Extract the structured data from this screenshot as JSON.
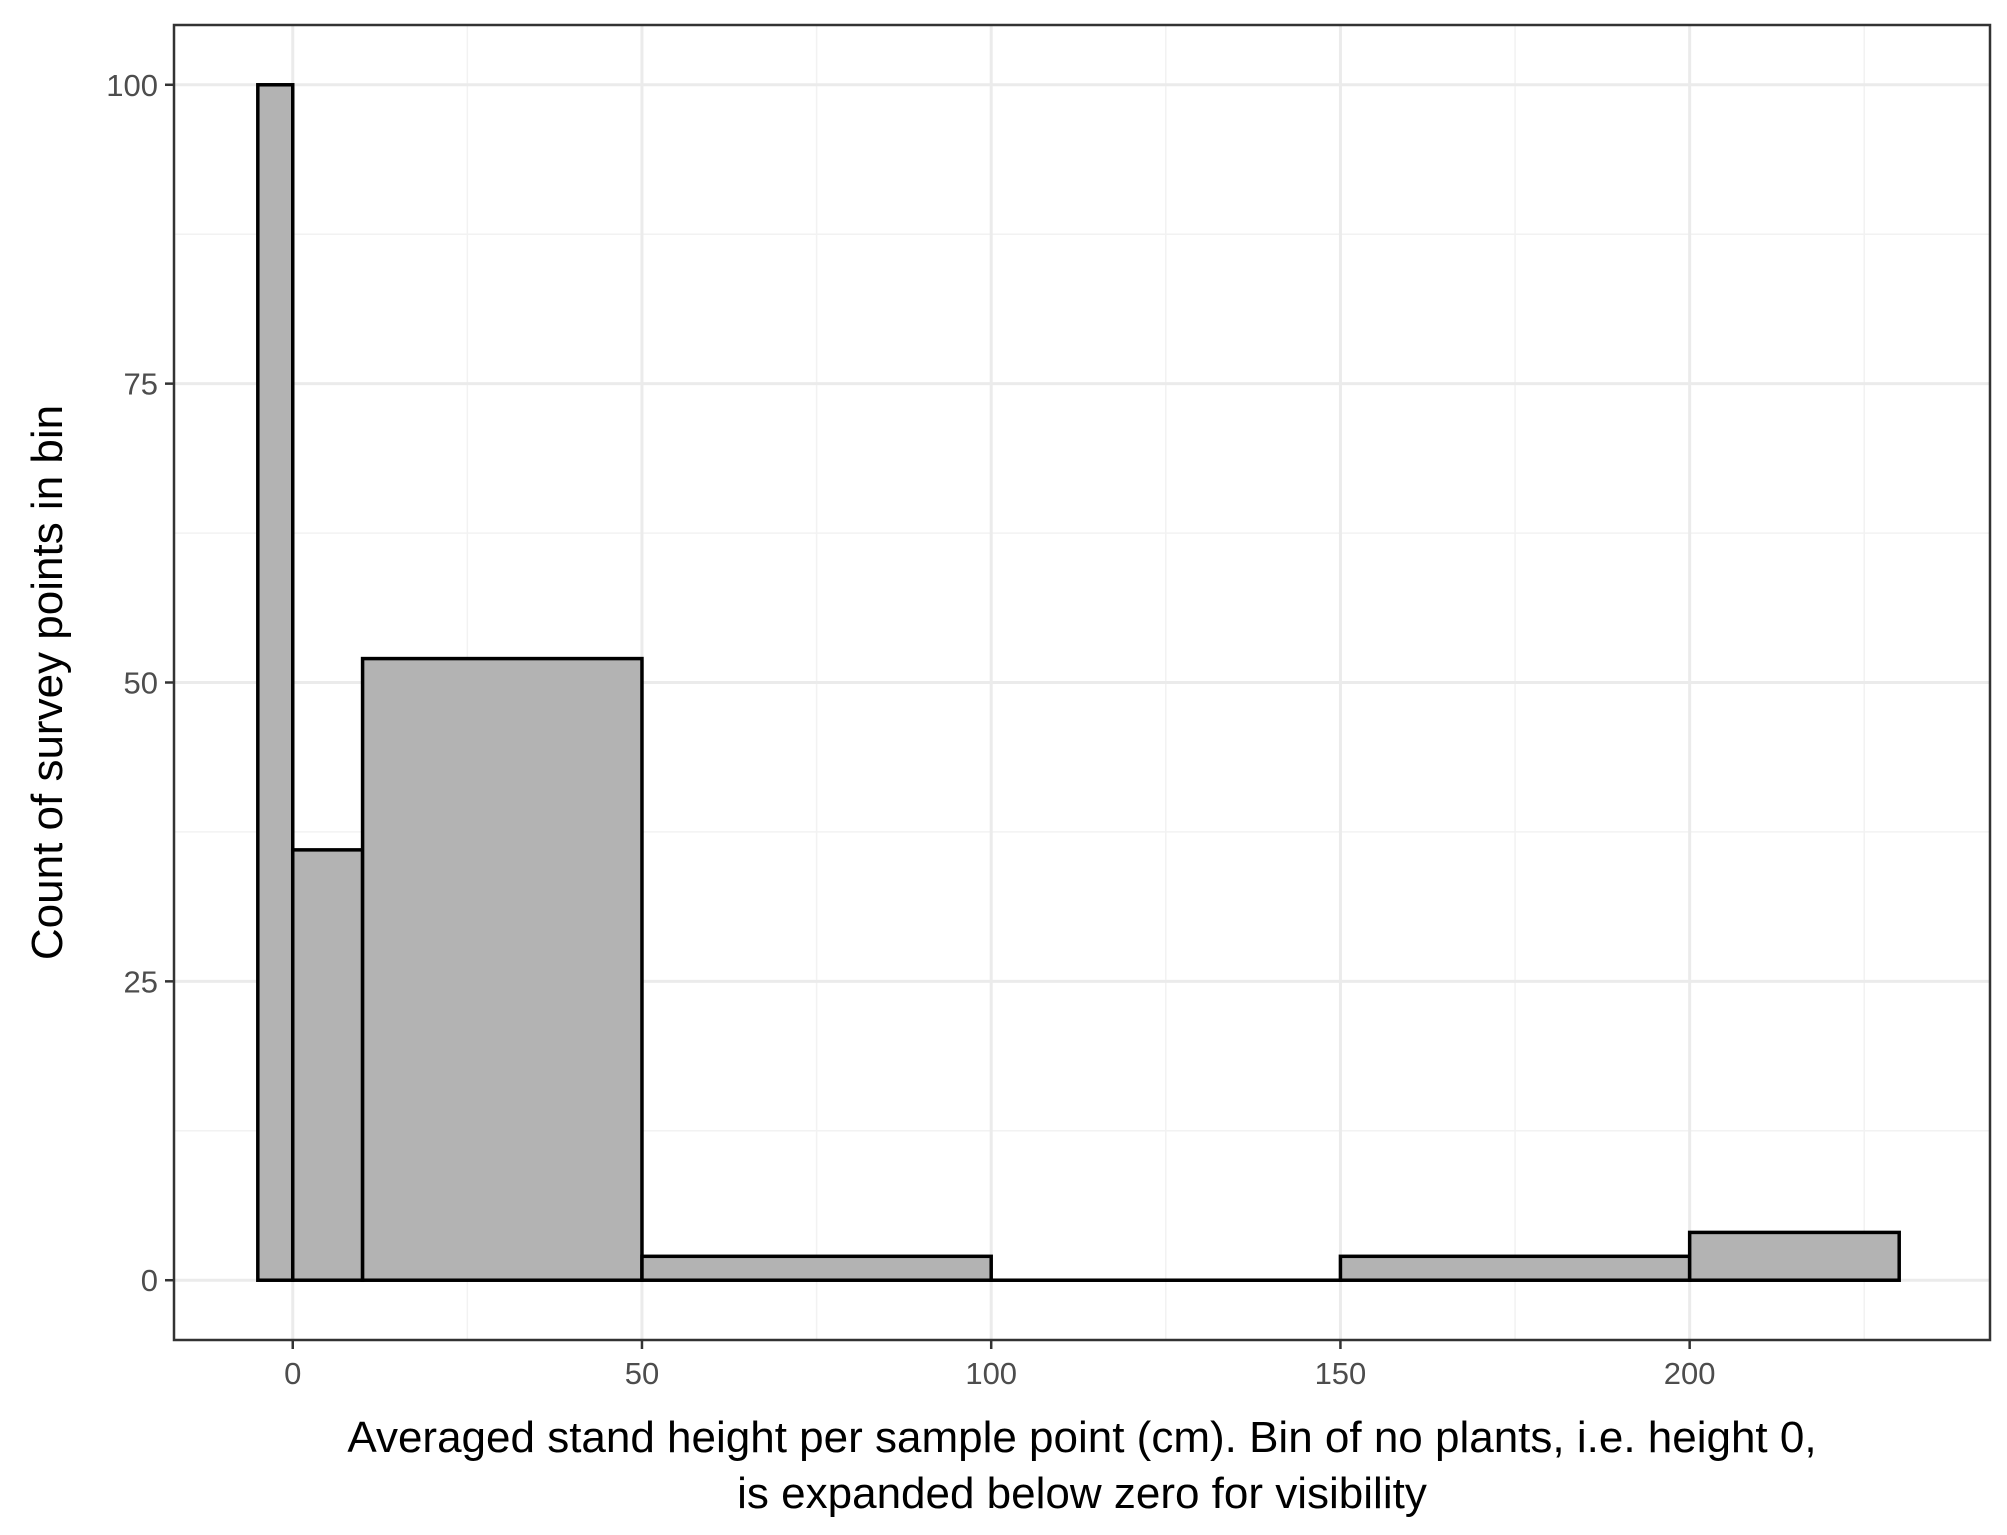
{
  "chart_data": {
    "type": "bar",
    "subtype": "histogram",
    "title": "",
    "xlabel_lines": [
      "Averaged stand height per sample point (cm). Bin of no plants, i.e. height 0,",
      "is expanded below zero for visibility"
    ],
    "ylabel": "Count of survey points in bin",
    "xlim": [
      -17,
      243
    ],
    "ylim": [
      -5,
      105
    ],
    "x_ticks": [
      0,
      50,
      100,
      150,
      200
    ],
    "y_ticks": [
      0,
      25,
      50,
      75,
      100
    ],
    "grid": true,
    "legend": "none",
    "bins": [
      {
        "x_start": -5,
        "x_end": 0,
        "count": 100
      },
      {
        "x_start": 0,
        "x_end": 10,
        "count": 36
      },
      {
        "x_start": 10,
        "x_end": 50,
        "count": 52
      },
      {
        "x_start": 50,
        "x_end": 100,
        "count": 2
      },
      {
        "x_start": 100,
        "x_end": 150,
        "count": 0
      },
      {
        "x_start": 150,
        "x_end": 200,
        "count": 2
      },
      {
        "x_start": 200,
        "x_end": 230,
        "count": 4
      }
    ],
    "colors": {
      "bar_fill": "#b3b3b3",
      "bar_stroke": "#000000",
      "grid_major": "#ebebeb",
      "grid_minor": "#f2f2f2",
      "panel_border": "#333333"
    }
  }
}
